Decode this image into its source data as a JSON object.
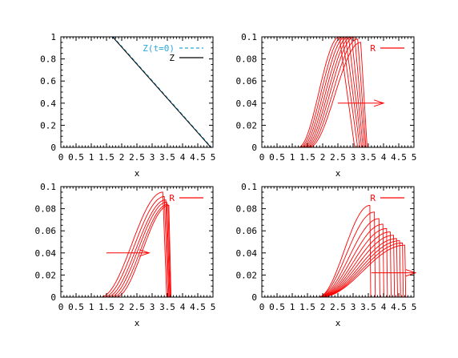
{
  "chart_data": [
    {
      "type": "line",
      "xlabel": "x",
      "ylabel": "",
      "xlim": [
        0,
        5
      ],
      "ylim": [
        0,
        1
      ],
      "xticks": [
        "0",
        "0.5",
        "1",
        "1.5",
        "2",
        "2.5",
        "3",
        "3.5",
        "4",
        "4.5",
        "5"
      ],
      "yticks": [
        "0",
        "0.2",
        "0.4",
        "0.6",
        "0.8",
        "1"
      ],
      "legend_position": "top-right",
      "series": [
        {
          "name": "Z(t=0)",
          "color": "#29a8d8",
          "dash": true,
          "points": [
            [
              1.72,
              1.0
            ],
            [
              4.95,
              0.0
            ]
          ]
        },
        {
          "name": "Z",
          "color": "#000000",
          "dash": false,
          "points": [
            [
              1.7,
              1.0
            ],
            [
              4.93,
              0.0
            ]
          ]
        }
      ]
    },
    {
      "type": "line",
      "xlabel": "x",
      "ylabel": "",
      "xlim": [
        0,
        5
      ],
      "ylim": [
        0,
        0.1
      ],
      "xticks": [
        "0",
        "0.5",
        "1",
        "1.5",
        "2",
        "2.5",
        "3",
        "3.5",
        "4",
        "4.5",
        "5"
      ],
      "yticks": [
        "0",
        "0.02",
        "0.04",
        "0.06",
        "0.08",
        "0.1"
      ],
      "legend_position": "top-right",
      "arrow": {
        "from": [
          2.5,
          0.04
        ],
        "to": [
          4.0,
          0.04
        ]
      },
      "color": "#ff0000",
      "series_name": "R",
      "profiles": [
        {
          "x0": 1.2,
          "peak": 2.55,
          "x1": 3.05,
          "ymax": 0.1
        },
        {
          "x0": 1.25,
          "peak": 2.65,
          "x1": 3.15,
          "ymax": 0.1
        },
        {
          "x0": 1.3,
          "peak": 2.75,
          "x1": 3.22,
          "ymax": 0.1
        },
        {
          "x0": 1.35,
          "peak": 2.85,
          "x1": 3.28,
          "ymax": 0.1
        },
        {
          "x0": 1.4,
          "peak": 2.95,
          "x1": 3.33,
          "ymax": 0.1
        },
        {
          "x0": 1.45,
          "peak": 3.05,
          "x1": 3.38,
          "ymax": 0.1
        },
        {
          "x0": 1.5,
          "peak": 3.15,
          "x1": 3.42,
          "ymax": 0.098
        },
        {
          "x0": 1.55,
          "peak": 3.25,
          "x1": 3.46,
          "ymax": 0.095
        }
      ]
    },
    {
      "type": "line",
      "xlabel": "x",
      "ylabel": "",
      "xlim": [
        0,
        5
      ],
      "ylim": [
        0,
        0.1
      ],
      "xticks": [
        "0",
        "0.5",
        "1",
        "1.5",
        "2",
        "2.5",
        "3",
        "3.5",
        "4",
        "4.5",
        "5"
      ],
      "yticks": [
        "0",
        "0.02",
        "0.04",
        "0.06",
        "0.08",
        "0.1"
      ],
      "legend_position": "top-right",
      "arrow": {
        "from": [
          1.5,
          0.04
        ],
        "to": [
          2.9,
          0.04
        ]
      },
      "color": "#ff0000",
      "series_name": "R",
      "profiles": [
        {
          "x0": 1.3,
          "peak": 3.35,
          "x1": 3.48,
          "ymax": 0.095
        },
        {
          "x0": 1.4,
          "peak": 3.4,
          "x1": 3.52,
          "ymax": 0.091
        },
        {
          "x0": 1.5,
          "peak": 3.45,
          "x1": 3.55,
          "ymax": 0.088
        },
        {
          "x0": 1.6,
          "peak": 3.48,
          "x1": 3.58,
          "ymax": 0.086
        },
        {
          "x0": 1.7,
          "peak": 3.52,
          "x1": 3.6,
          "ymax": 0.084
        },
        {
          "x0": 1.8,
          "peak": 3.55,
          "x1": 3.62,
          "ymax": 0.083
        }
      ]
    },
    {
      "type": "line",
      "xlabel": "x",
      "ylabel": "",
      "xlim": [
        0,
        5
      ],
      "ylim": [
        0,
        0.1
      ],
      "xticks": [
        "0",
        "0.5",
        "1",
        "1.5",
        "2",
        "2.5",
        "3",
        "3.5",
        "4",
        "4.5",
        "5"
      ],
      "yticks": [
        "0",
        "0.02",
        "0.04",
        "0.06",
        "0.08",
        "0.1"
      ],
      "legend_position": "top-right",
      "arrow": {
        "from": [
          3.6,
          0.022
        ],
        "to": [
          5.05,
          0.022
        ]
      },
      "color": "#ff0000",
      "series_name": "R",
      "profiles": [
        {
          "x0": 1.85,
          "peak": 3.55,
          "x1": 3.58,
          "ymax": 0.083
        },
        {
          "x0": 1.85,
          "peak": 3.7,
          "x1": 3.73,
          "ymax": 0.077
        },
        {
          "x0": 1.86,
          "peak": 3.85,
          "x1": 3.88,
          "ymax": 0.071
        },
        {
          "x0": 1.87,
          "peak": 3.98,
          "x1": 4.01,
          "ymax": 0.066
        },
        {
          "x0": 1.88,
          "peak": 4.1,
          "x1": 4.13,
          "ymax": 0.062
        },
        {
          "x0": 1.89,
          "peak": 4.22,
          "x1": 4.25,
          "ymax": 0.059
        },
        {
          "x0": 1.9,
          "peak": 4.33,
          "x1": 4.36,
          "ymax": 0.056
        },
        {
          "x0": 1.91,
          "peak": 4.43,
          "x1": 4.46,
          "ymax": 0.053
        },
        {
          "x0": 1.92,
          "peak": 4.53,
          "x1": 4.56,
          "ymax": 0.051
        },
        {
          "x0": 1.93,
          "peak": 4.62,
          "x1": 4.65,
          "ymax": 0.049
        },
        {
          "x0": 1.94,
          "peak": 4.7,
          "x1": 4.73,
          "ymax": 0.047
        }
      ]
    }
  ]
}
